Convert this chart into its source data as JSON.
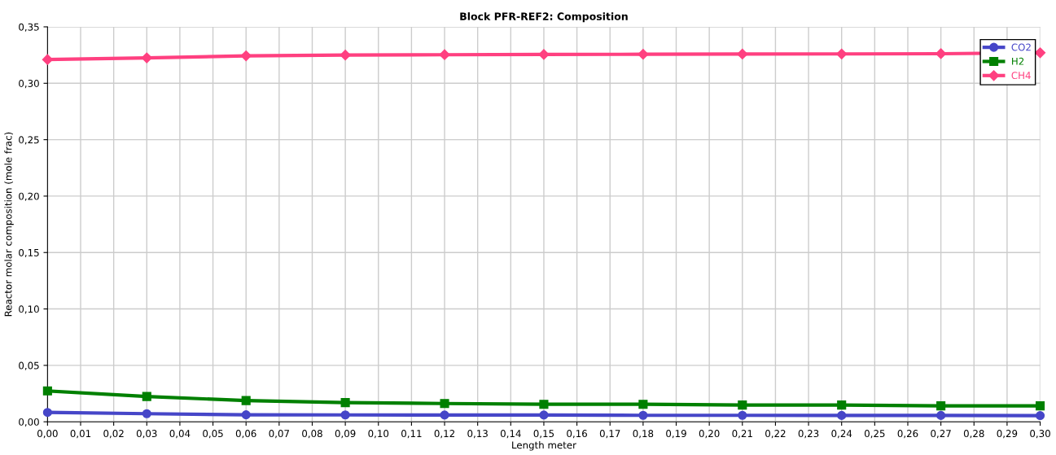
{
  "chart_data": {
    "type": "line",
    "title": "Block PFR-REF2: Composition",
    "xlabel": "Length meter",
    "ylabel": "Reactor molar composition (mole frac)",
    "x": [
      0,
      0.03,
      0.06,
      0.09,
      0.12,
      0.15,
      0.18,
      0.21,
      0.24,
      0.27,
      0.3
    ],
    "series": [
      {
        "name": "CO2",
        "color": "#4646c8",
        "marker": "circle",
        "values": [
          0.0083,
          0.0072,
          0.0062,
          0.0061,
          0.006,
          0.006,
          0.0057,
          0.0057,
          0.0056,
          0.0056,
          0.0055
        ]
      },
      {
        "name": "H2",
        "color": "#008000",
        "marker": "square",
        "values": [
          0.0274,
          0.0224,
          0.0188,
          0.017,
          0.0162,
          0.0155,
          0.0155,
          0.0148,
          0.0148,
          0.0141,
          0.0141
        ]
      },
      {
        "name": "CH4",
        "color": "#ff4080",
        "marker": "diamond",
        "values": [
          0.321,
          0.3225,
          0.3243,
          0.325,
          0.3253,
          0.3255,
          0.3257,
          0.3259,
          0.326,
          0.3262,
          0.327
        ]
      }
    ],
    "xlim": [
      0,
      0.3
    ],
    "xticks": [
      {
        "value": 0,
        "label": "0,00"
      },
      {
        "value": 0.01,
        "label": "0,01"
      },
      {
        "value": 0.02,
        "label": "0,02"
      },
      {
        "value": 0.03,
        "label": "0,03"
      },
      {
        "value": 0.04,
        "label": "0,04"
      },
      {
        "value": 0.05,
        "label": "0,05"
      },
      {
        "value": 0.06,
        "label": "0,06"
      },
      {
        "value": 0.07,
        "label": "0,07"
      },
      {
        "value": 0.08,
        "label": "0,08"
      },
      {
        "value": 0.09,
        "label": "0,09"
      },
      {
        "value": 0.1,
        "label": "0,10"
      },
      {
        "value": 0.11,
        "label": "0,11"
      },
      {
        "value": 0.12,
        "label": "0,12"
      },
      {
        "value": 0.13,
        "label": "0,13"
      },
      {
        "value": 0.14,
        "label": "0,14"
      },
      {
        "value": 0.15,
        "label": "0,15"
      },
      {
        "value": 0.16,
        "label": "0,16"
      },
      {
        "value": 0.17,
        "label": "0,17"
      },
      {
        "value": 0.18,
        "label": "0,18"
      },
      {
        "value": 0.19,
        "label": "0,19"
      },
      {
        "value": 0.2,
        "label": "0,20"
      },
      {
        "value": 0.21,
        "label": "0,21"
      },
      {
        "value": 0.22,
        "label": "0,22"
      },
      {
        "value": 0.23,
        "label": "0,23"
      },
      {
        "value": 0.24,
        "label": "0,24"
      },
      {
        "value": 0.25,
        "label": "0,25"
      },
      {
        "value": 0.26,
        "label": "0,26"
      },
      {
        "value": 0.27,
        "label": "0,27"
      },
      {
        "value": 0.28,
        "label": "0,28"
      },
      {
        "value": 0.29,
        "label": "0,29"
      },
      {
        "value": 0.3,
        "label": "0,30"
      }
    ],
    "ylim": [
      0,
      0.35
    ],
    "yticks": [
      {
        "value": 0,
        "label": "0,00"
      },
      {
        "value": 0.05,
        "label": "0,05"
      },
      {
        "value": 0.1,
        "label": "0,10"
      },
      {
        "value": 0.15,
        "label": "0,15"
      },
      {
        "value": 0.2,
        "label": "0,20"
      },
      {
        "value": 0.25,
        "label": "0,25"
      },
      {
        "value": 0.3,
        "label": "0,30"
      },
      {
        "value": 0.35,
        "label": "0,35"
      }
    ],
    "grid": true,
    "legend": "top right",
    "line_style": "solid"
  }
}
